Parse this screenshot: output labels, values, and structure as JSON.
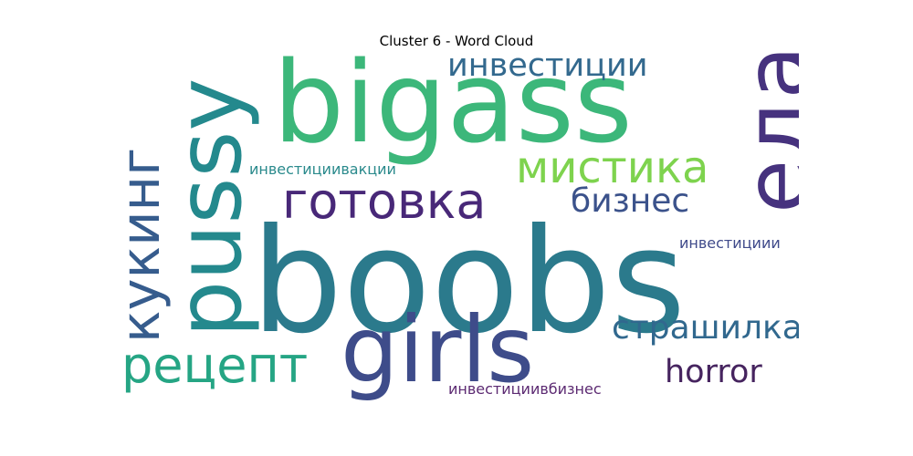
{
  "title": "Cluster 6 - Word Cloud",
  "colors": {
    "background": "#ffffff",
    "title": "#000000"
  },
  "words": {
    "boobs": {
      "text": "boobs",
      "color": "#2b7a8c"
    },
    "bigass": {
      "text": "bigass",
      "color": "#3cb77a"
    },
    "girls": {
      "text": "girls",
      "color": "#3e4c8a"
    },
    "pussy": {
      "text": "pussy",
      "color": "#24898d"
    },
    "eda": {
      "text": "еда",
      "color": "#46327e"
    },
    "gotovka": {
      "text": "готовка",
      "color": "#482878"
    },
    "mistika": {
      "text": "мистика",
      "color": "#7ed34e"
    },
    "kuking": {
      "text": "кукинг",
      "color": "#365c8d"
    },
    "recept": {
      "text": "рецепт",
      "color": "#25a584"
    },
    "strashilka": {
      "text": "страшилка",
      "color": "#31688e"
    },
    "horror": {
      "text": "horror",
      "color": "#46245f"
    },
    "investicii": {
      "text": "инвестиции",
      "color": "#33698e"
    },
    "biznes": {
      "text": "бизнес",
      "color": "#3b528b"
    },
    "investiciivakcii": {
      "text": "инвестициивакции",
      "color": "#2a8a8c"
    },
    "investiciii": {
      "text": "инвестициии",
      "color": "#3f4a8a"
    },
    "investiciivbiznes": {
      "text": "инвестициивбизнес",
      "color": "#5c2a72"
    }
  }
}
